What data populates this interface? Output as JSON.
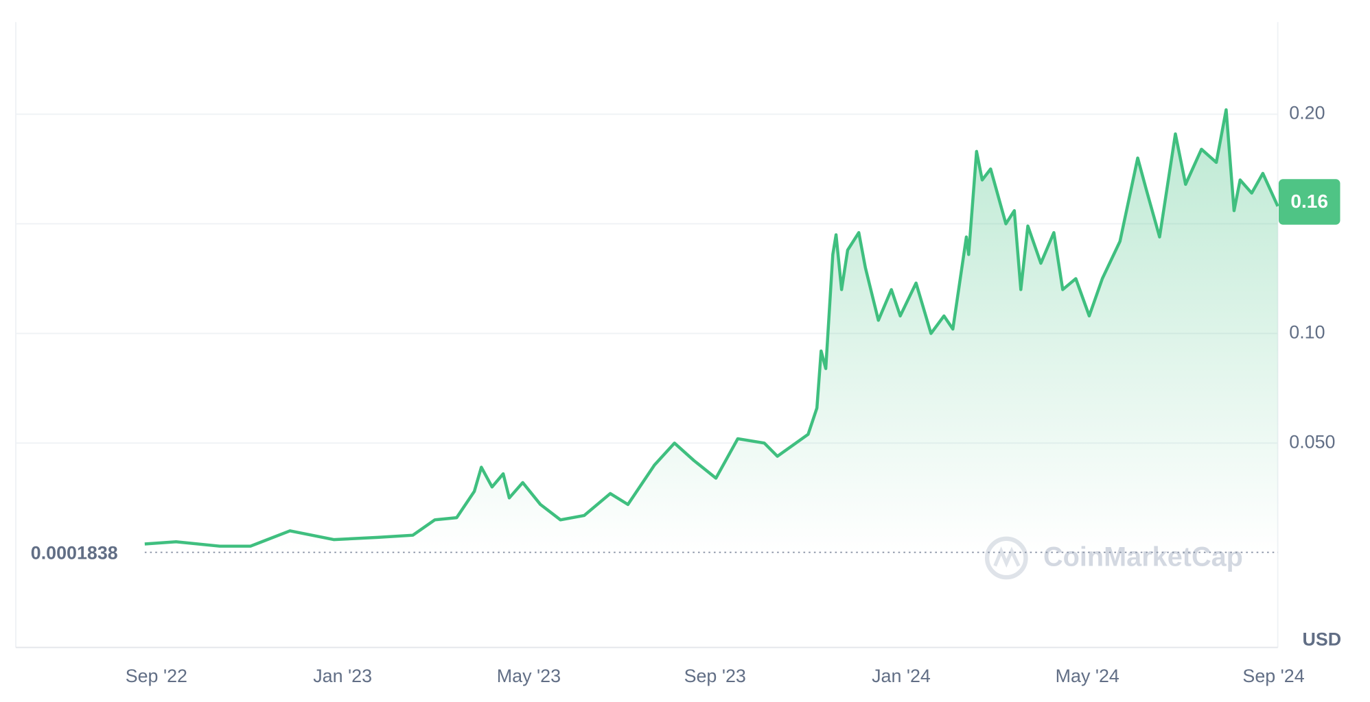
{
  "chart_data": {
    "type": "line",
    "color": "#3fbf7f",
    "x": [
      -0.25,
      0.42,
      1.36,
      2.02,
      2.87,
      3.81,
      4.75,
      5.51,
      5.98,
      6.45,
      6.83,
      6.98,
      7.21,
      7.45,
      7.58,
      7.87,
      8.25,
      8.68,
      9.19,
      9.75,
      10.13,
      10.7,
      11.13,
      11.55,
      12.02,
      12.49,
      13.06,
      13.34,
      14.0,
      14.19,
      14.28,
      14.38,
      14.53,
      14.6,
      14.72,
      14.85,
      15.09,
      15.23,
      15.51,
      15.79,
      15.98,
      16.32,
      16.64,
      16.92,
      17.11,
      17.4,
      17.45,
      17.62,
      17.74,
      17.92,
      18.25,
      18.43,
      18.57,
      18.72,
      19.0,
      19.28,
      19.47,
      19.75,
      20.04,
      20.32,
      20.7,
      21.08,
      21.26,
      21.55,
      21.89,
      22.11,
      22.45,
      22.77,
      22.98,
      23.15,
      23.28,
      23.53,
      23.77,
      24.09
    ],
    "values": [
      0.004,
      0.005,
      0.003,
      0.003,
      0.01,
      0.006,
      0.007,
      0.008,
      0.015,
      0.016,
      0.028,
      0.039,
      0.03,
      0.036,
      0.025,
      0.032,
      0.022,
      0.015,
      0.017,
      0.027,
      0.022,
      0.04,
      0.05,
      0.042,
      0.034,
      0.052,
      0.05,
      0.044,
      0.054,
      0.066,
      0.092,
      0.084,
      0.136,
      0.145,
      0.12,
      0.138,
      0.146,
      0.13,
      0.106,
      0.12,
      0.108,
      0.123,
      0.1,
      0.108,
      0.102,
      0.144,
      0.136,
      0.183,
      0.17,
      0.175,
      0.15,
      0.156,
      0.12,
      0.149,
      0.132,
      0.146,
      0.12,
      0.125,
      0.108,
      0.125,
      0.142,
      0.18,
      0.166,
      0.144,
      0.191,
      0.168,
      0.184,
      0.178,
      0.202,
      0.156,
      0.17,
      0.164,
      0.173,
      0.158
    ],
    "xlim": [
      -3.02,
      24.09
    ],
    "xticks": [
      {
        "value": 0,
        "label": "Sep '22"
      },
      {
        "value": 4,
        "label": "Jan '23"
      },
      {
        "value": 8,
        "label": "May '23"
      },
      {
        "value": 12,
        "label": "Sep '23"
      },
      {
        "value": 16,
        "label": "Jan '24"
      },
      {
        "value": 20,
        "label": "May '24"
      },
      {
        "value": 24,
        "label": "Sep '24"
      }
    ],
    "ylim": [
      -0.0432,
      0.242
    ],
    "yticks": [
      {
        "value": 0.05,
        "label": "0.050"
      },
      {
        "value": 0.1,
        "label": "0.10"
      },
      {
        "value": 0.15,
        "label": null
      },
      {
        "value": 0.2,
        "label": "0.20"
      }
    ],
    "baseline": 0.0001838,
    "current_price": 0.16,
    "currency": "USD",
    "watermark": "CoinMarketCap",
    "grid": true
  }
}
